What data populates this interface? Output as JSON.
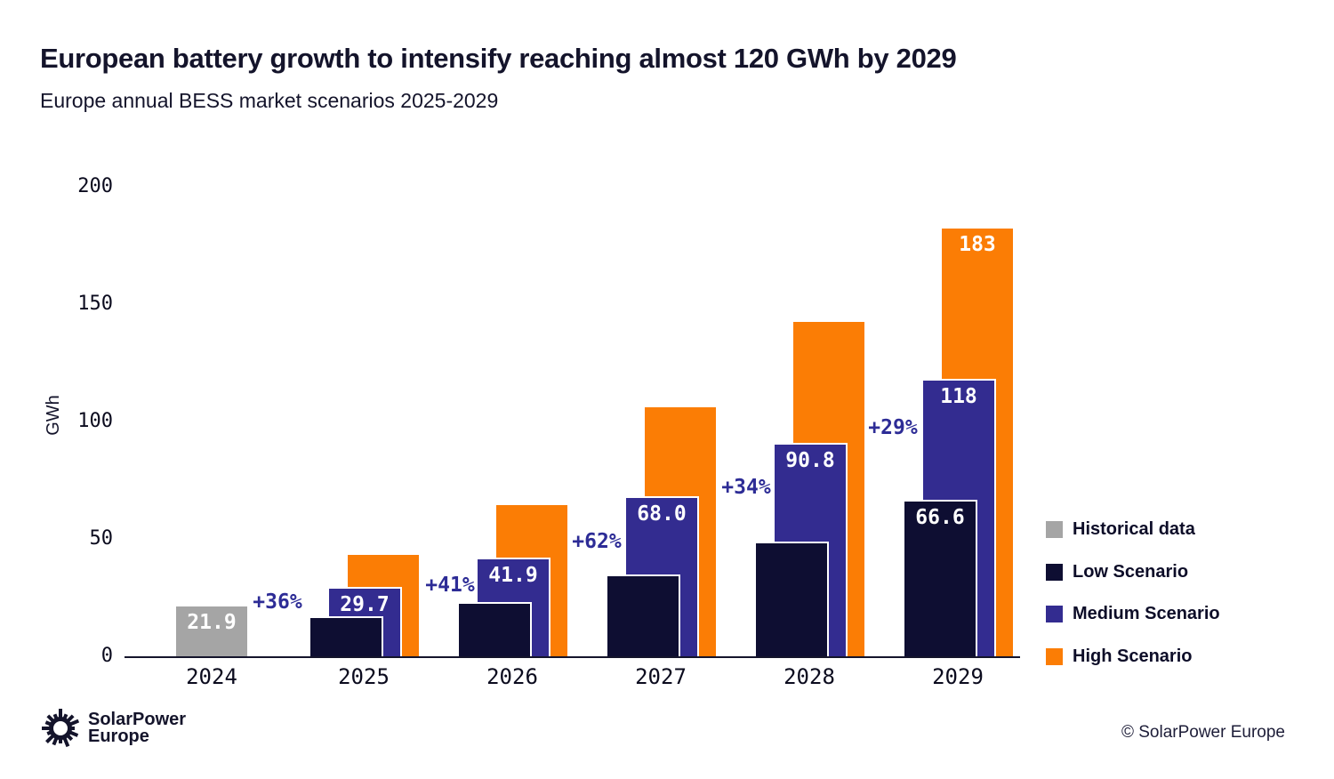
{
  "chart_data": {
    "type": "bar",
    "title": "European battery growth to intensify reaching almost 120 GWh by 2029",
    "subtitle": "Europe annual BESS market scenarios 2025-2029",
    "xlabel": "",
    "ylabel": "GWh",
    "ylim": [
      0,
      200
    ],
    "yticks": [
      0,
      50,
      100,
      150,
      200
    ],
    "grid": false,
    "legend_position": "right",
    "categories": [
      "2024",
      "2025",
      "2026",
      "2027",
      "2028",
      "2029"
    ],
    "series": [
      {
        "name": "Historical data",
        "color": "#A5A5A5",
        "values": [
          21.9,
          null,
          null,
          null,
          null,
          null
        ],
        "data_labels": [
          "21.9",
          "",
          "",
          "",
          "",
          ""
        ]
      },
      {
        "name": "Low Scenario",
        "color": "#0E0E32",
        "values": [
          null,
          17,
          23,
          35,
          49,
          66.6
        ],
        "data_labels": [
          "",
          "",
          "",
          "",
          "",
          "66.6"
        ]
      },
      {
        "name": "Medium Scenario",
        "color": "#332C90",
        "values": [
          null,
          29.7,
          41.9,
          68.0,
          90.8,
          118
        ],
        "data_labels": [
          "",
          "29.7",
          "41.9",
          "68.0",
          "90.8",
          "118"
        ]
      },
      {
        "name": "High Scenario",
        "color": "#FB7D05",
        "values": [
          null,
          44,
          65,
          107,
          143,
          183
        ],
        "data_labels": [
          "",
          "",
          "",
          "",
          "",
          "183"
        ]
      }
    ],
    "annotations": [
      {
        "text": "+36%",
        "between": [
          "2024",
          "2025"
        ]
      },
      {
        "text": "+41%",
        "between": [
          "2025",
          "2026"
        ]
      },
      {
        "text": "+62%",
        "between": [
          "2026",
          "2027"
        ]
      },
      {
        "text": "+34%",
        "between": [
          "2027",
          "2028"
        ]
      },
      {
        "text": "+29%",
        "between": [
          "2028",
          "2029"
        ]
      }
    ],
    "annotation_color": "#2D2C96"
  },
  "legend": {
    "items": [
      {
        "label": "Historical data",
        "color": "#A5A5A5"
      },
      {
        "label": "Low Scenario",
        "color": "#0E0E32"
      },
      {
        "label": "Medium Scenario",
        "color": "#332C90"
      },
      {
        "label": "High Scenario",
        "color": "#FB7D05"
      }
    ]
  },
  "footer": {
    "logo_line1": "SolarPower",
    "logo_line2": "Europe",
    "copyright": "© SolarPower Europe"
  }
}
